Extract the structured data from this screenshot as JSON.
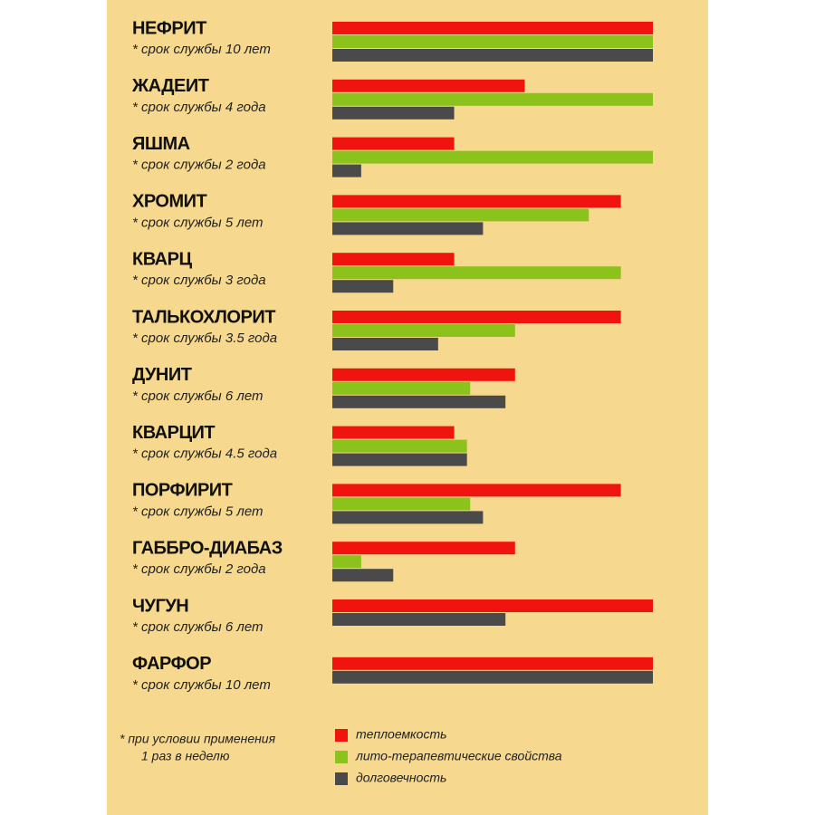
{
  "chart_data": {
    "type": "bar",
    "orientation": "horizontal",
    "categories": [
      "НЕФРИТ",
      "ЖАДЕИТ",
      "ЯШМА",
      "ХРОМИТ",
      "КВАРЦ",
      "ТАЛЬКОХЛОРИТ",
      "ДУНИТ",
      "КВАРЦИТ",
      "ПОРФИРИТ",
      "ГАББРО-ДИАБАЗ",
      "ЧУГУН",
      "ФАРФОР"
    ],
    "sublabels": [
      "* срок службы 10 лет",
      "* срок службы 4 года",
      "* срок службы  2 года",
      "* срок службы  5 лет",
      "* срок службы  3  года",
      "* срок службы  3.5 года",
      "* срок службы 6 лет",
      "* срок службы 4.5 года",
      "* срок службы 5 лет",
      "* срок службы  2 года",
      "* срок службы  6 лет",
      "* срок службы 10 лет"
    ],
    "series": [
      {
        "name": "теплоемкость",
        "color": "#f0140f",
        "values": [
          10,
          6,
          3.8,
          9,
          3.8,
          9,
          5.7,
          3.8,
          9,
          5.7,
          10,
          10
        ]
      },
      {
        "name": "лито-терапевтические свойства",
        "color": "#8cc21c",
        "values": [
          10,
          10,
          10,
          8,
          9,
          5.7,
          4.3,
          4.2,
          4.3,
          0.9,
          null,
          null
        ]
      },
      {
        "name": "долговечность",
        "color": "#4a4a4a",
        "values": [
          10,
          3.8,
          0.9,
          4.7,
          1.9,
          3.3,
          5.4,
          4.2,
          4.7,
          1.9,
          5.4,
          10
        ]
      }
    ],
    "footnote": [
      "*  при условии применения",
      "1 раз в неделю"
    ]
  }
}
